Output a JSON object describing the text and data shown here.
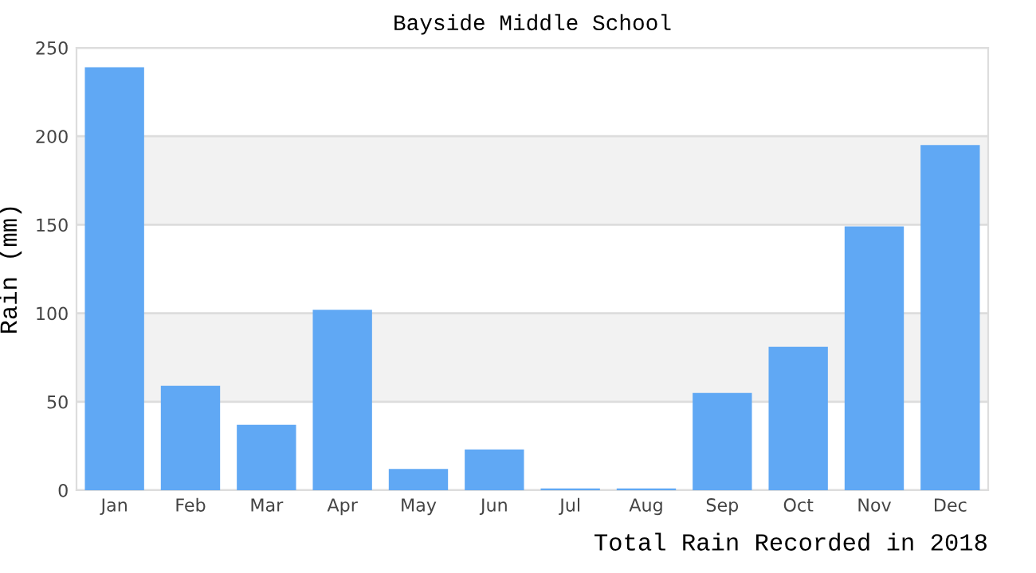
{
  "chart_data": {
    "type": "bar",
    "title": "Bayside Middle School",
    "xlabel": "Total Rain Recorded in 2018",
    "ylabel": "Rain (mm)",
    "categories": [
      "Jan",
      "Feb",
      "Mar",
      "Apr",
      "May",
      "Jun",
      "Jul",
      "Aug",
      "Sep",
      "Oct",
      "Nov",
      "Dec"
    ],
    "values": [
      239,
      59,
      37,
      102,
      12,
      23,
      1,
      1,
      55,
      81,
      149,
      195
    ],
    "color": "#60a8f4",
    "ylim": [
      0,
      250
    ],
    "yticks": [
      0,
      50,
      100,
      150,
      200,
      250
    ],
    "grid": "y",
    "bands": [
      {
        "axis": "y",
        "from": 50,
        "to": 100,
        "color": "#f2f2f2"
      },
      {
        "axis": "y",
        "from": 150,
        "to": 200,
        "color": "#f2f2f2"
      }
    ]
  }
}
